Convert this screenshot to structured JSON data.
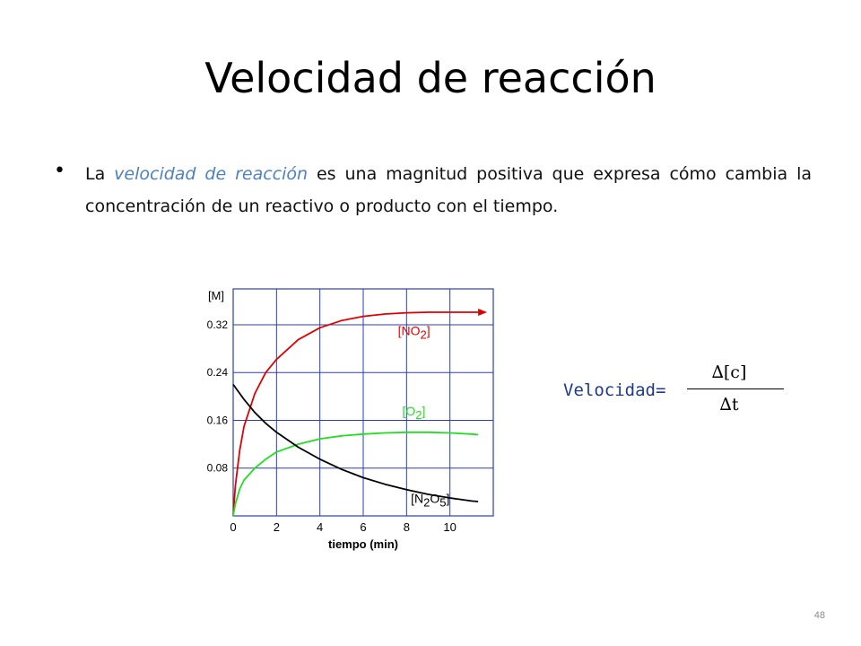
{
  "slide": {
    "title": "Velocidad de reacción",
    "bullet": "•",
    "paragraph": {
      "pre": "La ",
      "emphasis": "velocidad de reacción",
      "post": " es una magnitud positiva que expresa cómo cambia la concentración de un reactivo o producto con el tiempo."
    },
    "formula": {
      "label": "Velocidad=",
      "numerator": "∆[c]",
      "denominator": "∆t"
    },
    "page_number": "48"
  },
  "chart_data": {
    "type": "line",
    "ylabel": "[M]",
    "xlabel": "tiempo (min)",
    "xlim": [
      0,
      12
    ],
    "ylim": [
      0,
      0.38
    ],
    "x_ticks": [
      0,
      2,
      4,
      6,
      8,
      10
    ],
    "y_ticks": [
      0.08,
      0.16,
      0.24,
      0.32
    ],
    "y_tick_labels": [
      "0.08",
      "0.16",
      "0.24",
      "0.32"
    ],
    "grid": true,
    "series": [
      {
        "name": "[NO2]",
        "label_main": "[NO",
        "label_sub": "2",
        "label_end": "]",
        "color": "#e00000",
        "label_at": [
          7.6,
          0.303
        ],
        "arrow": true,
        "points": [
          [
            0,
            0
          ],
          [
            0.1,
            0.05
          ],
          [
            0.3,
            0.11
          ],
          [
            0.5,
            0.15
          ],
          [
            1,
            0.205
          ],
          [
            1.5,
            0.24
          ],
          [
            2,
            0.262
          ],
          [
            3,
            0.295
          ],
          [
            4,
            0.315
          ],
          [
            5,
            0.327
          ],
          [
            6,
            0.334
          ],
          [
            7,
            0.338
          ],
          [
            8,
            0.34
          ],
          [
            9,
            0.341
          ],
          [
            10,
            0.341
          ],
          [
            11,
            0.341
          ],
          [
            11.3,
            0.341
          ]
        ]
      },
      {
        "name": "[O2]",
        "label_main": "[O",
        "label_sub": "2",
        "label_end": "]",
        "color": "#22dd22",
        "label_at": [
          7.8,
          0.168
        ],
        "arrow": false,
        "points": [
          [
            0,
            0
          ],
          [
            0.1,
            0.02
          ],
          [
            0.3,
            0.045
          ],
          [
            0.5,
            0.06
          ],
          [
            1,
            0.08
          ],
          [
            1.5,
            0.095
          ],
          [
            2,
            0.107
          ],
          [
            3,
            0.12
          ],
          [
            4,
            0.129
          ],
          [
            5,
            0.134
          ],
          [
            6,
            0.137
          ],
          [
            7,
            0.139
          ],
          [
            8,
            0.14
          ],
          [
            9,
            0.14
          ],
          [
            10,
            0.139
          ],
          [
            11,
            0.137
          ],
          [
            11.3,
            0.136
          ]
        ]
      },
      {
        "name": "[N2O5]",
        "label_main": "[N",
        "label_sub": "2",
        "label_mid": "O",
        "label_sub2": "5",
        "label_end": "]",
        "color": "#000000",
        "label_at": [
          8.2,
          0.022
        ],
        "arrow": false,
        "points": [
          [
            0,
            0.22
          ],
          [
            0.5,
            0.195
          ],
          [
            1,
            0.173
          ],
          [
            1.5,
            0.155
          ],
          [
            2,
            0.14
          ],
          [
            3,
            0.115
          ],
          [
            4,
            0.095
          ],
          [
            5,
            0.078
          ],
          [
            6,
            0.064
          ],
          [
            7,
            0.053
          ],
          [
            8,
            0.044
          ],
          [
            9,
            0.036
          ],
          [
            10,
            0.03
          ],
          [
            11,
            0.025
          ],
          [
            11.3,
            0.024
          ]
        ]
      }
    ]
  }
}
